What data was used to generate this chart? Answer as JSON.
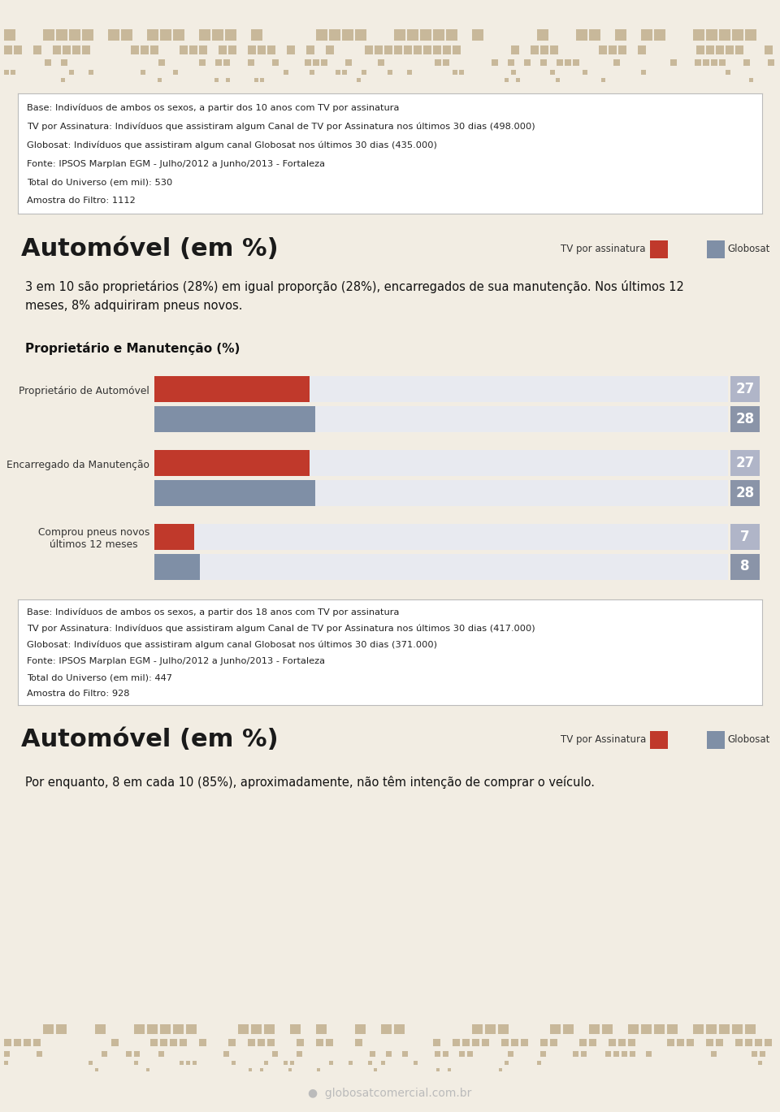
{
  "bg_color": "#f2ede3",
  "header_bg": "#c8b89a",
  "white_bg": "#ffffff",
  "light_gray": "#e8eaf0",
  "box_border": "#bbbbbb",
  "info_box1_lines": [
    "Base: Indivíduos de ambos os sexos, a partir dos 10 anos com TV por assinatura",
    "TV por Assinatura: Indivíduos que assistiram algum Canal de TV por Assinatura nos últimos 30 dias (498.000)",
    "Globosat: Indivíduos que assistiram algum canal Globosat nos últimos 30 dias (435.000)",
    "Fonte: IPSOS Marplan EGM - Julho/2012 a Junho/2013 - Fortaleza",
    "Total do Universo (em mil): 530",
    "Amostra do Filtro: 1112"
  ],
  "section1_title": "Automóvel (em %)",
  "section1_legend_label1": "TV por assinatura",
  "section1_legend_label2": "Globosat",
  "section1_text": "3 em 10 são proprietários (28%) em igual proporção (28%), encarregados de sua manutenção. Nos últimos 12\nmeses, 8% adquiriram pneus novos.",
  "chart1_title": "Proprietário e Manutenção (%)",
  "chart1_categories": [
    "Proprietário de Automóvel",
    "Encarregado da Manutenção",
    "Comprou pneus novos\núltimos 12 meses"
  ],
  "chart1_red_values": [
    27,
    27,
    7
  ],
  "chart1_blue_values": [
    28,
    28,
    8
  ],
  "chart1_max": 100,
  "info_box2_lines": [
    "Base: Indivíduos de ambos os sexos, a partir dos 18 anos com TV por assinatura",
    "TV por Assinatura: Indivíduos que assistiram algum Canal de TV por Assinatura nos últimos 30 dias (417.000)",
    "Globosat: Indivíduos que assistiram algum canal Globosat nos últimos 30 dias (371.000)",
    "Fonte: IPSOS Marplan EGM - Julho/2012 a Junho/2013 - Fortaleza",
    "Total do Universo (em mil): 447",
    "Amostra do Filtro: 928"
  ],
  "section2_title": "Automóvel (em %)",
  "section2_legend_label1": "TV por Assinatura",
  "section2_legend_label2": "Globosat",
  "section2_text": "Por enquanto, 8 em cada 10 (85%), aproximadamente, não têm intenção de comprar o veículo.",
  "red_color": "#c0392b",
  "blue_color": "#7f8fa6",
  "value_box_light": "#b0b5c8",
  "value_box_dark": "#8a94a8",
  "footer_text": "globosatcomercial.com.br",
  "footer_bg": "#3d3d3d"
}
